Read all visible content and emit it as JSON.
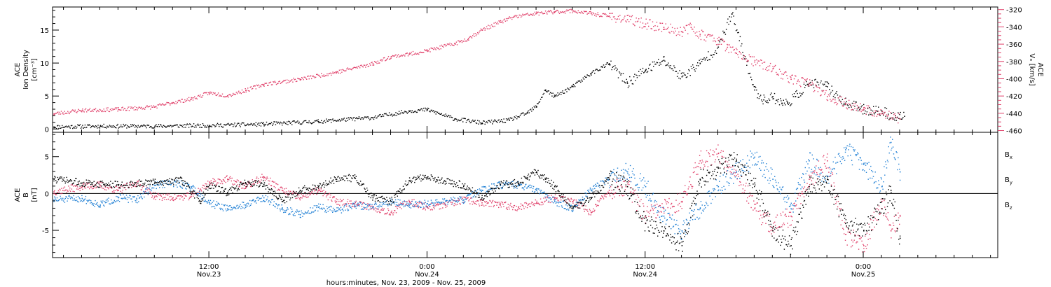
{
  "chart_data": [
    {
      "type": "scatter",
      "panel": "top",
      "ylabel": [
        "ACE",
        "Ion Density",
        "[cm⁻³]"
      ],
      "ylim": [
        -0.5,
        18.5
      ],
      "yticks": [
        0,
        5,
        10,
        15
      ],
      "right_axis": {
        "label": [
          "ACE",
          "Vₓ [km/s]"
        ],
        "ylim": [
          -462,
          -317
        ],
        "yticks": [
          -320,
          -340,
          -360,
          -380,
          -400,
          -420,
          -440,
          -460
        ],
        "color": "#e0406a"
      },
      "series": [
        {
          "color": "#000000",
          "axis": "left",
          "x": [
            -17.1,
            -12,
            -6,
            0,
            6,
            12,
            18,
            22,
            24,
            27,
            30,
            33,
            35,
            36,
            37,
            38,
            40,
            42,
            44,
            46,
            48,
            50,
            52,
            54,
            56,
            57.5,
            60,
            61,
            62,
            63,
            63.6,
            64.5,
            66,
            68,
            70,
            72,
            74,
            75.5,
            76.5
          ],
          "y": [
            0.4,
            0.5,
            0.5,
            0.6,
            0.8,
            1.2,
            1.8,
            2.8,
            3.0,
            1.6,
            1.0,
            1.4,
            2.5,
            3.5,
            6.0,
            5.0,
            6.5,
            8.5,
            10.0,
            7.0,
            9.0,
            10.5,
            8.0,
            10.0,
            12.5,
            17.5,
            6.0,
            4.5,
            5.0,
            4.0,
            4.0,
            5.0,
            7.0,
            6.5,
            4.0,
            3.0,
            2.8,
            1.8,
            2.0
          ]
        },
        {
          "color": "#e0406a",
          "axis": "right",
          "x": [
            -17.1,
            -14,
            -10,
            -6,
            -4,
            -2,
            0,
            2,
            4,
            6,
            10,
            14,
            18,
            20,
            22,
            24,
            27,
            28.5,
            30,
            32,
            33.5,
            36,
            38,
            40,
            42,
            44,
            46,
            48,
            50,
            52,
            53,
            54,
            56,
            57,
            58,
            60,
            62,
            64,
            66,
            68,
            70,
            72,
            74,
            76
          ],
          "y": [
            -440,
            -436,
            -435,
            -432,
            -427,
            -423,
            -416,
            -419,
            -413,
            -406,
            -400,
            -392,
            -382,
            -374,
            -371,
            -367,
            -359,
            -353,
            -343,
            -334,
            -328,
            -324,
            -322,
            -321,
            -324,
            -327,
            -331,
            -336,
            -340,
            -345,
            -340,
            -348,
            -355,
            -363,
            -370,
            -380,
            -388,
            -400,
            -405,
            -420,
            -428,
            -435,
            -440,
            -446
          ]
        }
      ]
    },
    {
      "type": "scatter",
      "panel": "bottom",
      "ylabel": [
        "ACE",
        "B",
        "[nT]"
      ],
      "ylim": [
        -8.7,
        8.3
      ],
      "yticks": [
        5,
        0,
        -5
      ],
      "zero_line": true,
      "legend": [
        "Bx",
        "By",
        "Bz"
      ],
      "series": [
        {
          "name": "Bx",
          "color": "#000000",
          "x": [
            -17.1,
            -14,
            -10,
            -6,
            -3,
            -1,
            0,
            2,
            4,
            6,
            8,
            10,
            12,
            14,
            16,
            18,
            20,
            22,
            24,
            26,
            28,
            30,
            32,
            34,
            35,
            36,
            37,
            38,
            40,
            42,
            44,
            46,
            48,
            50,
            52,
            54,
            56,
            58,
            60,
            62,
            64,
            66,
            68,
            70,
            72,
            74,
            75,
            76
          ],
          "y": [
            2.0,
            1.5,
            1.2,
            1.6,
            1.8,
            -1.0,
            1.2,
            0.2,
            1.5,
            1.3,
            -1.0,
            0.5,
            1.0,
            2.0,
            2.2,
            -0.5,
            -1.0,
            1.8,
            2.3,
            1.7,
            1.2,
            -0.5,
            1.3,
            1.5,
            2.2,
            3.0,
            2.0,
            1.0,
            -2.0,
            -0.5,
            2.0,
            1.0,
            -4.0,
            -5.0,
            -7.0,
            2.0,
            3.5,
            4.5,
            1.5,
            -5.0,
            -7.0,
            1.0,
            2.0,
            -4.0,
            -5.0,
            -2.0,
            0.5,
            -6.0
          ]
        },
        {
          "name": "By",
          "color": "#1f7fd4",
          "x": [
            -17.1,
            -14,
            -12,
            -10,
            -8,
            -6,
            -4,
            -2,
            0,
            2,
            4,
            6,
            8,
            10,
            12,
            14,
            16,
            18,
            20,
            22,
            24,
            26,
            28,
            30,
            32,
            34,
            36,
            38,
            40,
            42,
            44,
            46,
            48,
            50,
            52,
            54,
            56,
            58,
            60,
            62,
            64,
            66,
            68,
            70,
            72,
            74,
            75,
            76
          ],
          "y": [
            -0.8,
            -0.6,
            -1.5,
            -0.5,
            -0.8,
            1.2,
            1.5,
            1.0,
            -1.2,
            -2.0,
            -1.5,
            -0.5,
            -2.0,
            -2.8,
            -1.8,
            -2.3,
            -1.5,
            -1.8,
            -1.0,
            -1.5,
            -1.3,
            -1.0,
            -0.8,
            0.5,
            1.2,
            1.2,
            0.5,
            -1.0,
            -2.0,
            0.5,
            2.0,
            3.0,
            1.0,
            -3.0,
            -5.0,
            -2.0,
            1.0,
            3.0,
            5.0,
            2.0,
            -2.0,
            4.5,
            2.0,
            6.0,
            4.0,
            1.0,
            7.0,
            3.0
          ]
        },
        {
          "name": "Bz",
          "color": "#e0406a",
          "x": [
            -17.1,
            -14,
            -12,
            -10,
            -8,
            -6,
            -4,
            -2,
            0,
            2,
            4,
            6,
            8,
            10,
            12,
            14,
            16,
            18,
            20,
            22,
            24,
            26,
            28,
            30,
            32,
            34,
            36,
            38,
            40,
            42,
            44,
            46,
            48,
            50,
            52,
            54,
            56,
            58,
            60,
            62,
            64,
            66,
            68,
            70,
            72,
            74,
            75,
            76
          ],
          "y": [
            0.3,
            1.0,
            1.2,
            0.5,
            1.5,
            -0.3,
            -0.5,
            -0.3,
            1.5,
            2.0,
            1.0,
            2.3,
            0.5,
            -0.5,
            0.5,
            -1.0,
            -1.3,
            -1.8,
            -2.5,
            -1.0,
            -1.8,
            -1.5,
            -0.8,
            -1.2,
            -1.5,
            -1.8,
            -1.2,
            -0.5,
            -1.0,
            -2.5,
            0.5,
            1.0,
            -3.0,
            -2.0,
            -1.0,
            4.5,
            5.5,
            3.0,
            -2.0,
            -4.5,
            -3.0,
            2.0,
            4.5,
            -5.5,
            -7.0,
            -1.0,
            -5.0,
            -3.0
          ]
        }
      ]
    }
  ],
  "x_axis": {
    "xlim": [
      -17.2,
      86.8
    ],
    "label": "hours:minutes, Nov. 23, 2009 - Nov. 25, 2009",
    "major_ticks": [
      {
        "x": 0,
        "time": "12:00",
        "date": "Nov.23"
      },
      {
        "x": 24,
        "time": "0:00",
        "date": "Nov.24"
      },
      {
        "x": 48,
        "time": "12:00",
        "date": "Nov.24"
      },
      {
        "x": 72,
        "time": "0:00",
        "date": "Nov.25"
      }
    ],
    "minor_step": 2
  }
}
